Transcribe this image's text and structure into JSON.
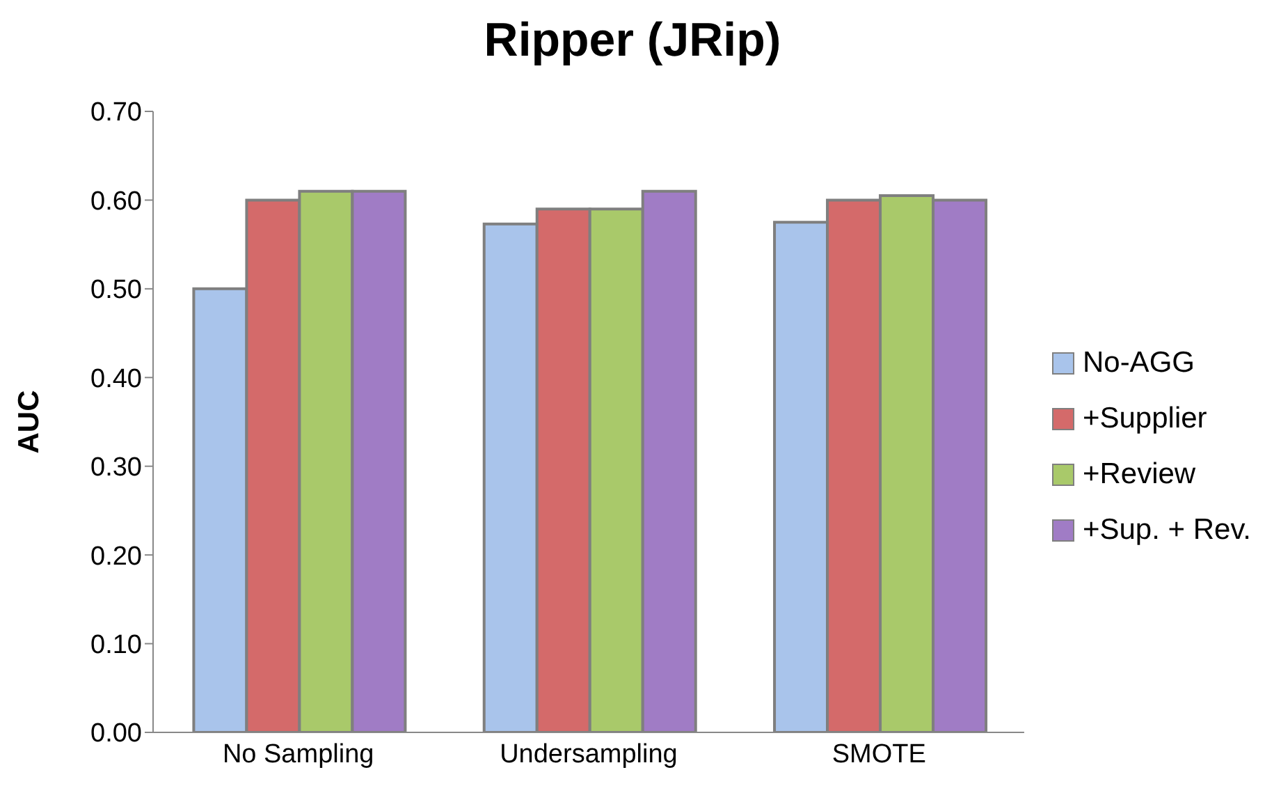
{
  "chart_data": {
    "type": "bar",
    "title": "Ripper (JRip)",
    "ylabel": "AUC",
    "categories": [
      "No Sampling",
      "Undersampling",
      "SMOTE"
    ],
    "series": [
      {
        "name": "No-AGG",
        "color": "#a9c4eb",
        "values": [
          0.5,
          0.573,
          0.575
        ]
      },
      {
        "name": "+Supplier",
        "color": "#d46a6a",
        "values": [
          0.6,
          0.59,
          0.6
        ]
      },
      {
        "name": "+Review",
        "color": "#a9c96a",
        "values": [
          0.61,
          0.59,
          0.605
        ]
      },
      {
        "name": "+Sup. + Rev.",
        "color": "#a07cc5",
        "values": [
          0.61,
          0.61,
          0.6
        ]
      }
    ],
    "ylim": [
      0,
      0.7
    ],
    "yticks": [
      {
        "value": 0,
        "label": "0.00"
      },
      {
        "value": 0.1,
        "label": "0.10"
      },
      {
        "value": 0.2,
        "label": "0.20"
      },
      {
        "value": 0.3,
        "label": "0.30"
      },
      {
        "value": 0.4,
        "label": "0.40"
      },
      {
        "value": 0.5,
        "label": "0.50"
      },
      {
        "value": 0.6,
        "label": "0.60"
      },
      {
        "value": 0.7,
        "label": "0.70"
      }
    ],
    "grid": false,
    "legend": "right"
  }
}
